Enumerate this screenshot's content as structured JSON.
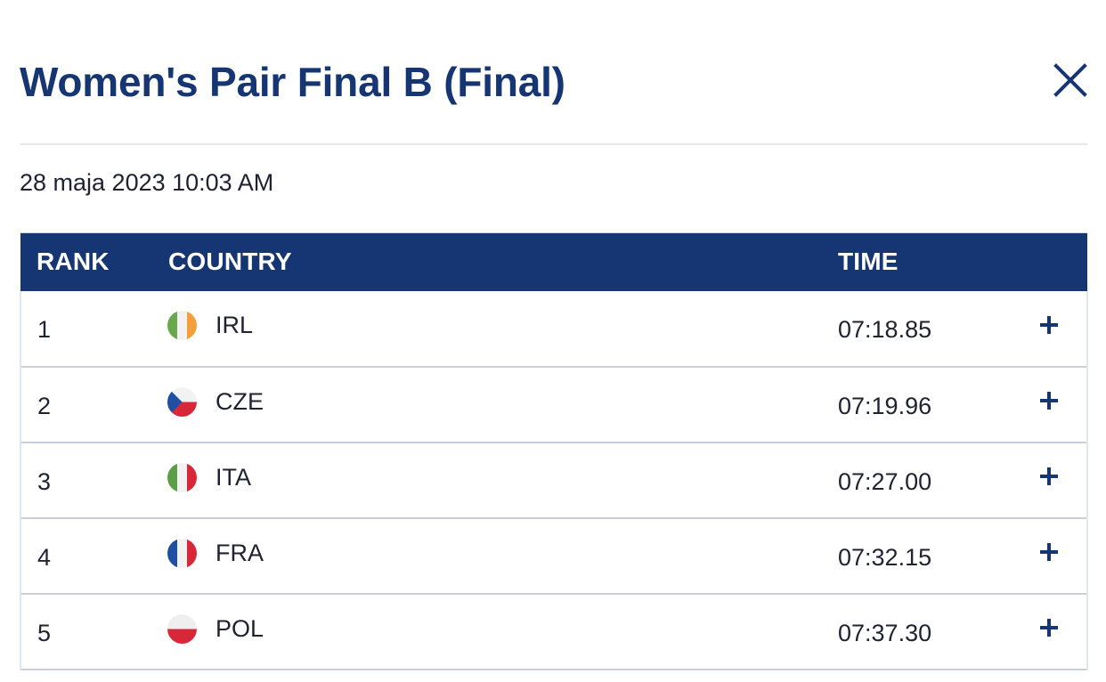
{
  "modal": {
    "title": "Women's Pair Final B (Final)",
    "close_icon": "close-icon",
    "date": "28 maja 2023 10:03 AM"
  },
  "table": {
    "headers": {
      "rank": "RANK",
      "country": "COUNTRY",
      "time": "TIME"
    },
    "rows": [
      {
        "rank": "1",
        "country": "IRL",
        "flag": "ireland-flag-icon",
        "time": "07:18.85",
        "expand_icon": "plus-icon"
      },
      {
        "rank": "2",
        "country": "CZE",
        "flag": "czech-flag-icon",
        "time": "07:19.96",
        "expand_icon": "plus-icon"
      },
      {
        "rank": "3",
        "country": "ITA",
        "flag": "italy-flag-icon",
        "time": "07:27.00",
        "expand_icon": "plus-icon"
      },
      {
        "rank": "4",
        "country": "FRA",
        "flag": "france-flag-icon",
        "time": "07:32.15",
        "expand_icon": "plus-icon"
      },
      {
        "rank": "5",
        "country": "POL",
        "flag": "poland-flag-icon",
        "time": "07:37.30",
        "expand_icon": "plus-icon"
      }
    ]
  },
  "colors": {
    "primary": "#163673",
    "divider": "#e5e7ea",
    "row_border": "#c9d0dc",
    "text": "#1f2230"
  }
}
